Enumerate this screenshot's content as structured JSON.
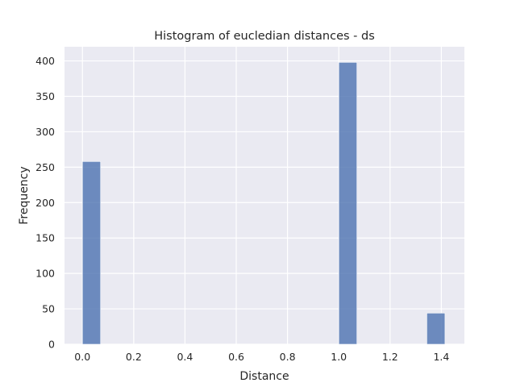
{
  "chart_data": {
    "type": "bar",
    "title": "Histogram of eucledian distances - ds",
    "xlabel": "Distance",
    "ylabel": "Frequency",
    "xlim": [
      -0.07,
      1.49
    ],
    "ylim": [
      0,
      420
    ],
    "xticks": [
      0.0,
      0.2,
      0.4,
      0.6,
      0.8,
      1.0,
      1.2,
      1.4
    ],
    "xtick_labels": [
      "0.0",
      "0.2",
      "0.4",
      "0.6",
      "0.8",
      "1.0",
      "1.2",
      "1.4"
    ],
    "yticks": [
      0,
      50,
      100,
      150,
      200,
      250,
      300,
      350,
      400
    ],
    "ytick_labels": [
      "0",
      "50",
      "100",
      "150",
      "200",
      "250",
      "300",
      "350",
      "400"
    ],
    "bins": [
      {
        "x0": 0.0,
        "x1": 0.0707,
        "count": 258
      },
      {
        "x0": 1.0,
        "x1": 1.0707,
        "count": 398
      },
      {
        "x0": 1.3435,
        "x1": 1.4142,
        "count": 44
      }
    ],
    "grid": true,
    "legend": "none",
    "colors": {
      "background": "#eaeaf2",
      "grid": "#ffffff",
      "bar": "#4c72b0",
      "bar_opacity": 0.8
    }
  }
}
